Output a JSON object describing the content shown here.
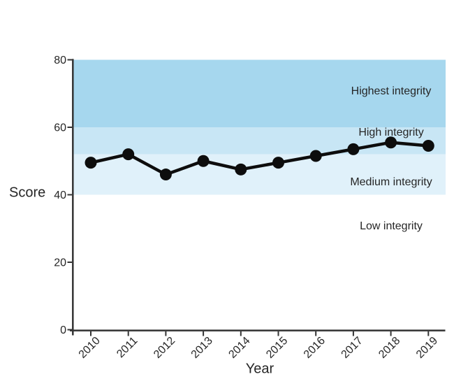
{
  "chart_data": {
    "type": "line",
    "title": "",
    "xlabel": "Year",
    "ylabel": "Score",
    "x": [
      2010,
      2011,
      2012,
      2013,
      2014,
      2015,
      2016,
      2017,
      2018,
      2019
    ],
    "series": [
      {
        "name": "Score",
        "values": [
          49.5,
          52,
          46,
          50,
          47.5,
          49.5,
          51.5,
          53.5,
          55.5,
          54.5
        ]
      }
    ],
    "ylim": [
      0,
      80
    ],
    "yticks": [
      0,
      20,
      40,
      60,
      80
    ],
    "grid": false,
    "legend_position": "none",
    "marker": "filled-circle",
    "line_color": "#0d0d0d",
    "marker_color": "#0d0d0d",
    "axis_color": "#333333",
    "tick_label_color": "#262626",
    "bands": [
      {
        "label": "Highest integrity",
        "from": 60,
        "to": 80,
        "color": "#a6d7ee"
      },
      {
        "label": "High integrity",
        "from": 52,
        "to": 60,
        "color": "#c8e6f5"
      },
      {
        "label": "Medium integrity",
        "from": 40,
        "to": 52,
        "color": "#e0f1fa"
      },
      {
        "label": "Low integrity",
        "from": 0,
        "to": 40,
        "color": "#ffffff"
      }
    ]
  }
}
